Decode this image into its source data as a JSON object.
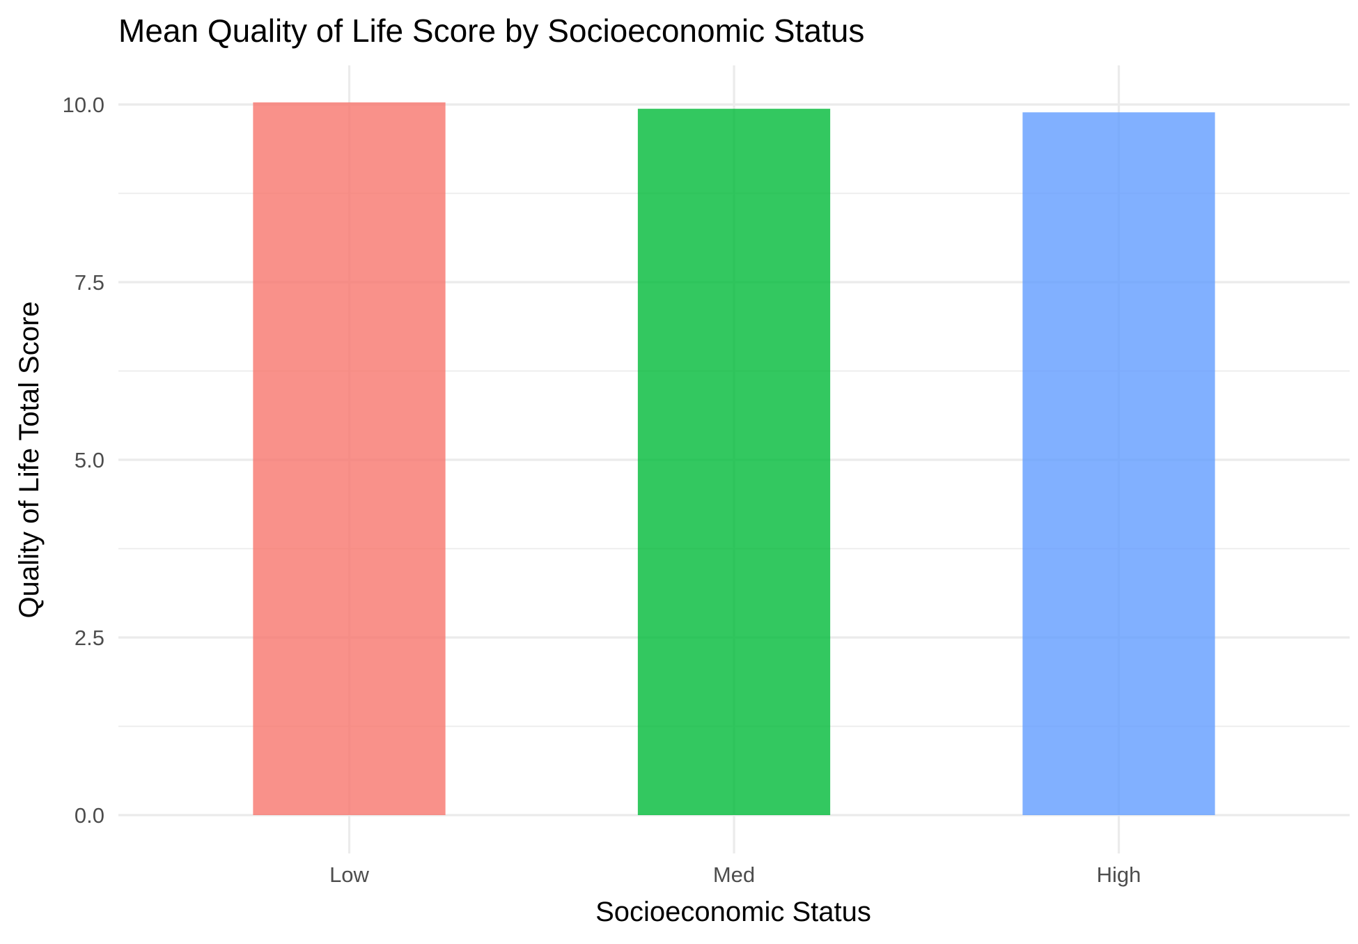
{
  "chart_data": {
    "type": "bar",
    "title": "Mean Quality of Life Score by Socioeconomic Status",
    "xlabel": "Socioeconomic Status",
    "ylabel": "Quality of Life Total Score",
    "categories": [
      "Low",
      "Med",
      "High"
    ],
    "values": [
      10.03,
      9.94,
      9.89
    ],
    "colors": [
      "#F8766D",
      "#00BA38",
      "#619CFF"
    ],
    "ylim": [
      0,
      10.55
    ],
    "yticks": [
      0,
      2.5,
      5,
      7.5,
      10
    ],
    "ytick_labels": [
      "0.0",
      "2.5",
      "5.0",
      "7.5",
      "10.0"
    ],
    "yminor": [
      1.25,
      3.75,
      6.25,
      8.75
    ],
    "grid": true,
    "legend": "none"
  }
}
